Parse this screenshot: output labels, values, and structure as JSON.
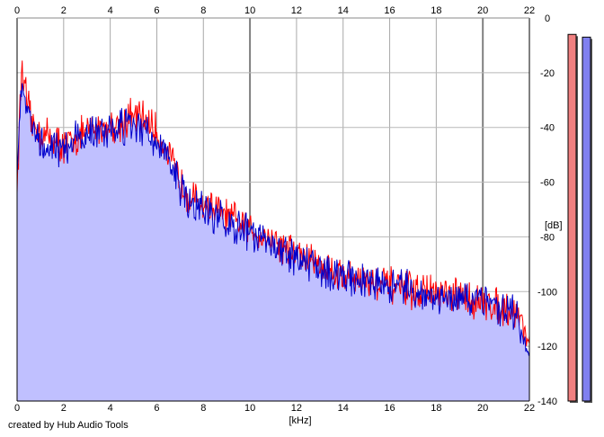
{
  "footer": {
    "credit": "created by Hub Audio Tools"
  },
  "chart_data": {
    "type": "area",
    "xlabel": "[kHz]",
    "ylabel": "[dB]",
    "xlim": [
      0,
      22
    ],
    "ylim": [
      -140,
      0
    ],
    "x_ticks": [
      0,
      2,
      4,
      6,
      8,
      10,
      12,
      14,
      16,
      18,
      20,
      22
    ],
    "y_ticks": [
      0,
      -20,
      -40,
      -60,
      -80,
      -100,
      -120,
      -140
    ],
    "grid": true,
    "colors": {
      "red_channel": "#ff0000",
      "blue_channel": "#0000cc",
      "area_fill": "#c0c0ff",
      "red_meter": "#f08080",
      "blue_meter": "#8080f0"
    },
    "series": [
      {
        "color": "#ff0000",
        "x": [
          0,
          0.2,
          0.4,
          0.6,
          0.8,
          1,
          1.5,
          2,
          2.5,
          3,
          3.5,
          4,
          4.5,
          5,
          5.5,
          6,
          6.5,
          7,
          7.5,
          8,
          8.5,
          9,
          9.5,
          10,
          10.5,
          11,
          11.5,
          12,
          12.5,
          13,
          13.5,
          14,
          14.5,
          15,
          15.5,
          16,
          16.5,
          17,
          17.5,
          18,
          18.5,
          19,
          19.5,
          20,
          20.5,
          21,
          21.5,
          22
        ],
        "values": [
          -62,
          -17,
          -30,
          -38,
          -40,
          -42,
          -44,
          -47,
          -44,
          -42,
          -40,
          -40,
          -38,
          -36,
          -37,
          -42,
          -50,
          -60,
          -66,
          -68,
          -70,
          -73,
          -75,
          -77,
          -79,
          -81,
          -84,
          -86,
          -88,
          -90,
          -92,
          -94,
          -95,
          -96,
          -97,
          -98,
          -99,
          -100,
          -100,
          -101,
          -102,
          -102,
          -103,
          -104,
          -105,
          -106,
          -108,
          -118
        ]
      },
      {
        "color": "#0000cc",
        "x": [
          0,
          0.2,
          0.4,
          0.6,
          0.8,
          1,
          1.5,
          2,
          2.5,
          3,
          3.5,
          4,
          4.5,
          5,
          5.5,
          6,
          6.5,
          7,
          7.5,
          8,
          8.5,
          9,
          9.5,
          10,
          10.5,
          11,
          11.5,
          12,
          12.5,
          13,
          13.5,
          14,
          14.5,
          15,
          15.5,
          16,
          16.5,
          17,
          17.5,
          18,
          18.5,
          19,
          19.5,
          20,
          20.5,
          21,
          21.5,
          22
        ],
        "values": [
          -55,
          -22,
          -32,
          -40,
          -42,
          -44,
          -46,
          -48,
          -45,
          -43,
          -41,
          -41,
          -40,
          -40,
          -42,
          -45,
          -52,
          -62,
          -68,
          -70,
          -72,
          -75,
          -77,
          -79,
          -81,
          -83,
          -85,
          -87,
          -89,
          -91,
          -93,
          -94,
          -95,
          -96,
          -97,
          -98,
          -99,
          -100,
          -101,
          -102,
          -102,
          -103,
          -104,
          -105,
          -106,
          -107,
          -109,
          -122
        ]
      }
    ],
    "meters": [
      {
        "channel": "red",
        "level_db": -6
      },
      {
        "channel": "blue",
        "level_db": -7
      }
    ]
  }
}
